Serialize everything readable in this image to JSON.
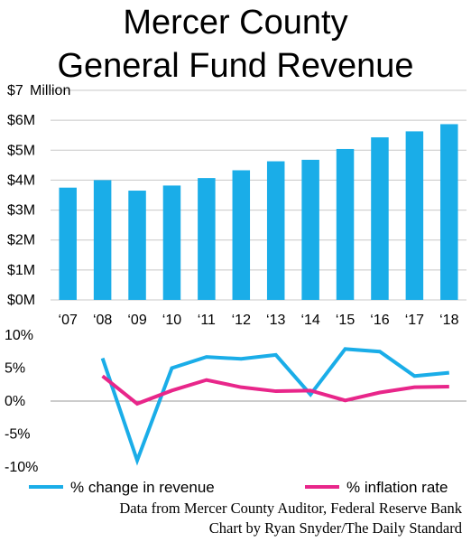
{
  "title_line1": "Mercer County",
  "title_line2": "General Fund Revenue",
  "credits": {
    "line1": "Data from Mercer County Auditor, Federal Reserve Bank",
    "line2": "Chart by Ryan Snyder/The Daily Standard"
  },
  "chart_data": [
    {
      "type": "bar",
      "title": "Mercer County General Fund Revenue",
      "unit_label": "Million",
      "categories": [
        "‘07",
        "‘08",
        "‘09",
        "‘10",
        "‘11",
        "‘12",
        "‘13",
        "‘14",
        "‘15",
        "‘16",
        "‘17",
        "‘18"
      ],
      "values": [
        3.75,
        4.0,
        3.65,
        3.82,
        4.07,
        4.33,
        4.63,
        4.68,
        5.04,
        5.43,
        5.63,
        5.87
      ],
      "y_ticks": [
        0,
        1,
        2,
        3,
        4,
        5,
        6,
        7
      ],
      "y_tick_labels": [
        "$0M",
        "$1M",
        "$2M",
        "$3M",
        "$4M",
        "$5M",
        "$6M",
        "$7"
      ],
      "ylim": [
        0,
        7
      ],
      "bar_color": "#1aade8",
      "grid": true
    },
    {
      "type": "line",
      "categories": [
        "‘07",
        "‘08",
        "‘09",
        "‘10",
        "‘11",
        "‘12",
        "‘13",
        "‘14",
        "‘15",
        "‘16",
        "‘17",
        "‘18"
      ],
      "series": [
        {
          "name": "% change in revenue",
          "color": "#1aade8",
          "values": [
            null,
            6.5,
            -9.0,
            5.0,
            6.7,
            6.4,
            7.0,
            1.0,
            7.9,
            7.5,
            3.8,
            4.3
          ]
        },
        {
          "name": "% inflation rate",
          "color": "#e8268a",
          "values": [
            null,
            3.8,
            -0.4,
            1.6,
            3.2,
            2.1,
            1.5,
            1.6,
            0.1,
            1.3,
            2.1,
            2.2
          ]
        }
      ],
      "y_ticks": [
        10,
        5,
        0,
        -5,
        -10
      ],
      "y_tick_labels": [
        "10%",
        "5%",
        "0%",
        "-5%",
        "-10%"
      ],
      "ylim": [
        -10,
        10
      ],
      "legend_position": "bottom",
      "grid": false
    }
  ]
}
